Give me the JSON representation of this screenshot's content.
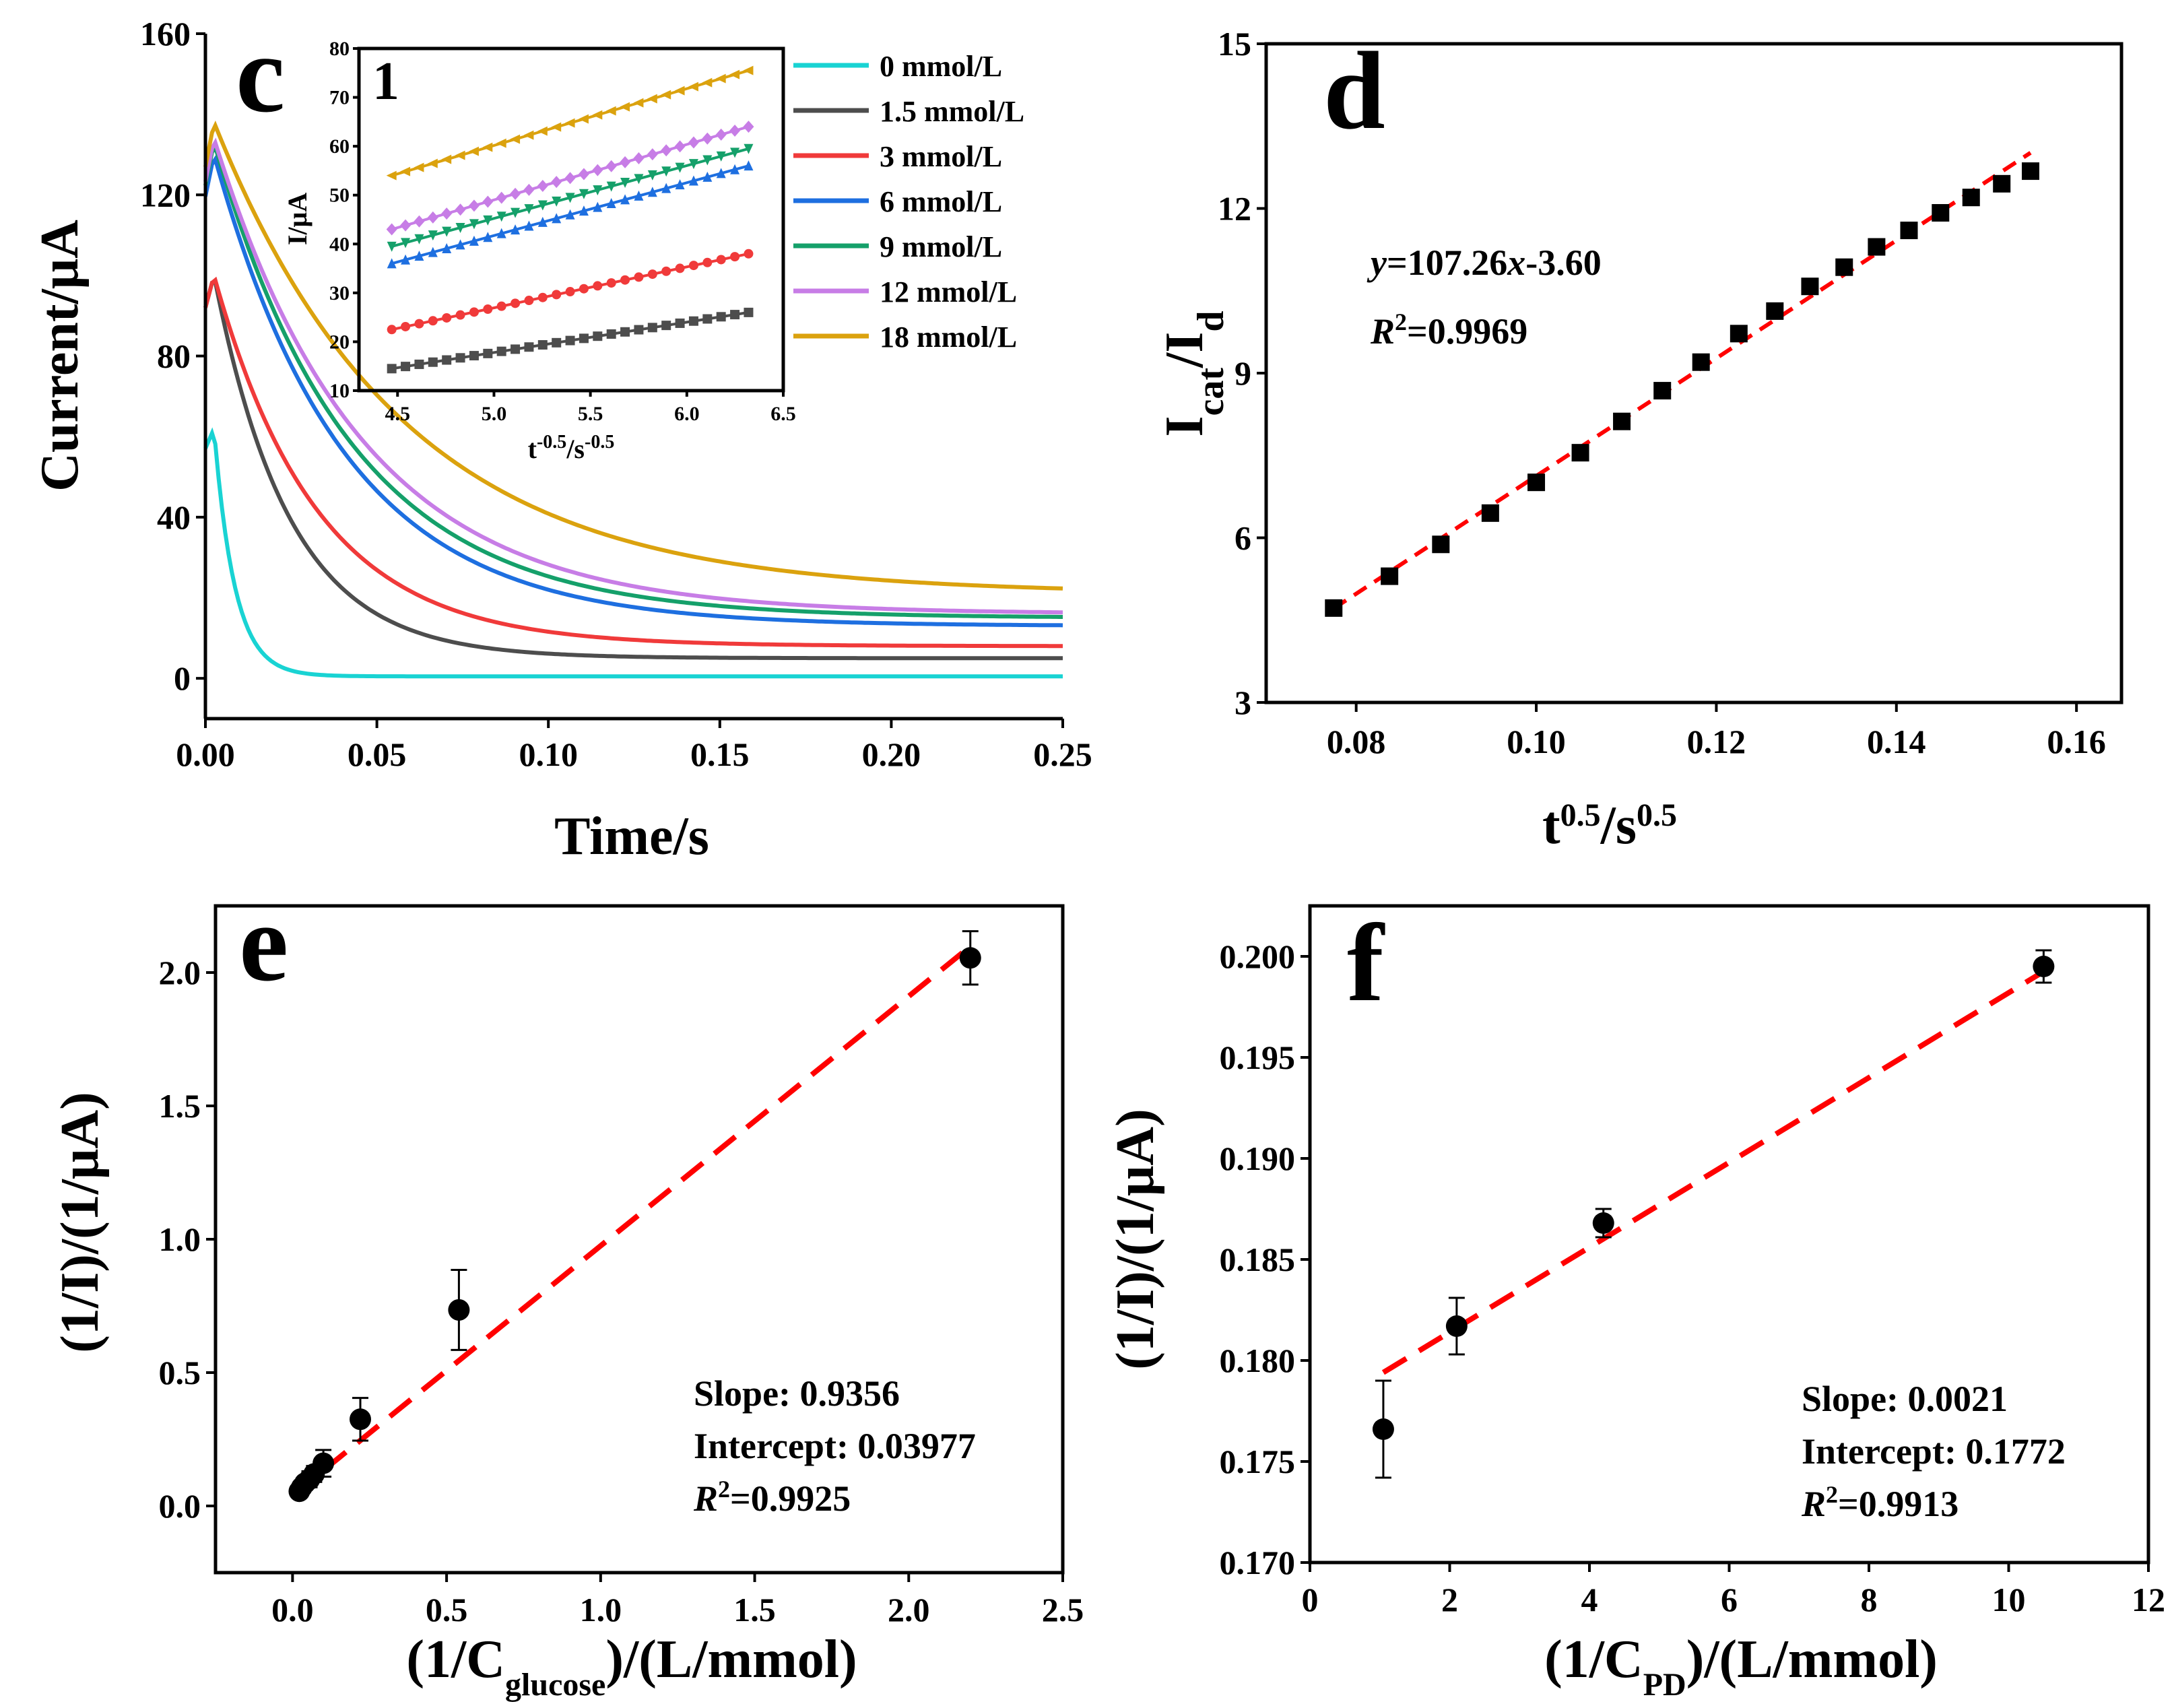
{
  "chart_data": [
    {
      "panel": "c",
      "type": "line",
      "title": "",
      "xlabel": "Time/s",
      "ylabel": "Current/μA",
      "xlim": [
        0,
        0.25
      ],
      "ylim": [
        -10,
        160
      ],
      "xticks": [
        "0.00",
        "0.05",
        "0.10",
        "0.15",
        "0.20",
        "0.25"
      ],
      "yticks": [
        "0",
        "40",
        "80",
        "120",
        "160"
      ],
      "legend_position": "top-right",
      "series": [
        {
          "name": "0 mmol/L",
          "color": "#19D3D3",
          "peak": 62,
          "plateau": 0.5,
          "tau": 0.006
        },
        {
          "name": "1.5 mmol/L",
          "color": "#4D4D4D",
          "peak": 100,
          "plateau": 5,
          "tau": 0.022
        },
        {
          "name": "3 mmol/L",
          "color": "#F03A3A",
          "peak": 100,
          "plateau": 8,
          "tau": 0.03
        },
        {
          "name": "6 mmol/L",
          "color": "#1E6FE0",
          "peak": 130,
          "plateau": 13,
          "tau": 0.038
        },
        {
          "name": "9 mmol/L",
          "color": "#15A06A",
          "peak": 133,
          "plateau": 15,
          "tau": 0.04
        },
        {
          "name": "12 mmol/L",
          "color": "#C77DE6",
          "peak": 134,
          "plateau": 16,
          "tau": 0.043
        },
        {
          "name": "18 mmol/L",
          "color": "#DBA20E",
          "peak": 138,
          "plateau": 21,
          "tau": 0.055
        }
      ],
      "inset": {
        "label": "1",
        "type": "scatter+line",
        "xlabel": "t-0.5/s-0.5",
        "ylabel": "I/μA",
        "xlim": [
          4.3,
          6.5
        ],
        "ylim": [
          10,
          80
        ],
        "xticks": [
          "4.5",
          "5.0",
          "5.5",
          "6.0",
          "6.5"
        ],
        "yticks": [
          "10",
          "20",
          "30",
          "40",
          "50",
          "60",
          "70",
          "80"
        ],
        "x_range": [
          4.47,
          6.32
        ],
        "series": [
          {
            "name": "1.5 mmol/L",
            "y_start": 14.5,
            "y_end": 26,
            "color": "#4D4D4D",
            "marker": "square"
          },
          {
            "name": "3 mmol/L",
            "y_start": 22.5,
            "y_end": 38,
            "color": "#F03A3A",
            "marker": "circle"
          },
          {
            "name": "6 mmol/L",
            "y_start": 36,
            "y_end": 56,
            "color": "#1E6FE0",
            "marker": "triangle-up"
          },
          {
            "name": "9 mmol/L",
            "y_start": 39.5,
            "y_end": 59.5,
            "color": "#15A06A",
            "marker": "triangle-down"
          },
          {
            "name": "12 mmol/L",
            "y_start": 43,
            "y_end": 64,
            "color": "#C77DE6",
            "marker": "diamond"
          },
          {
            "name": "18 mmol/L",
            "y_start": 54,
            "y_end": 75.5,
            "color": "#DBA20E",
            "marker": "triangle-left"
          }
        ]
      }
    },
    {
      "panel": "d",
      "type": "scatter",
      "xlabel": "t0.5/s0.5",
      "ylabel": "Icat/Id",
      "xlim": [
        0.07,
        0.165
      ],
      "ylim": [
        3,
        15
      ],
      "xticks": [
        "0.08",
        "0.10",
        "0.12",
        "0.14",
        "0.16"
      ],
      "yticks": [
        "3",
        "6",
        "9",
        "12",
        "15"
      ],
      "x": [
        0.0775,
        0.0837,
        0.0894,
        0.0949,
        0.1,
        0.1049,
        0.1095,
        0.114,
        0.1183,
        0.1225,
        0.1265,
        0.1304,
        0.1342,
        0.1378,
        0.1414,
        0.1449,
        0.1483,
        0.1517,
        0.1549
      ],
      "y": [
        4.72,
        5.3,
        5.88,
        6.45,
        7.01,
        7.55,
        8.12,
        8.68,
        9.2,
        9.72,
        10.13,
        10.58,
        10.93,
        11.3,
        11.6,
        11.92,
        12.2,
        12.45,
        12.68
      ],
      "fit": {
        "slope": 107.26,
        "intercept": -3.6,
        "x_range": [
          0.0775,
          0.1549
        ],
        "color": "#FF0000",
        "style": "dashed"
      },
      "annotations": {
        "equation": "=107.26-3.60",
        "r2": "=0.9969"
      }
    },
    {
      "panel": "e",
      "type": "scatter",
      "xlabel": "(1/Cglucose)/(L/mmol)",
      "ylabel": "(1/I)/(1/μA)",
      "xlim": [
        -0.25,
        2.5
      ],
      "ylim": [
        -0.25,
        2.25
      ],
      "xticks": [
        "0.0",
        "0.5",
        "1.0",
        "1.5",
        "2.0",
        "2.5"
      ],
      "yticks": [
        "0.0",
        "0.5",
        "1.0",
        "1.5",
        "2.0"
      ],
      "x": [
        0.022,
        0.03,
        0.04,
        0.055,
        0.07,
        0.1,
        0.22,
        0.54,
        2.2
      ],
      "y": [
        0.055,
        0.07,
        0.085,
        0.1,
        0.12,
        0.16,
        0.325,
        0.735,
        2.055
      ],
      "err": [
        0.02,
        0.02,
        0.02,
        0.03,
        0.03,
        0.05,
        0.08,
        0.15,
        0.1
      ],
      "fit": {
        "slope": 0.9356,
        "intercept": 0.03977,
        "x_range": [
          0,
          2.2
        ],
        "color": "#FF0000",
        "style": "dashed"
      },
      "annotations": {
        "slope": "Slope: 0.9356",
        "intercept": "Intercept: 0.03977",
        "r2": "=0.9925"
      }
    },
    {
      "panel": "f",
      "type": "scatter",
      "xlabel": "(1/CPD)/(L/mmol)",
      "ylabel": "(1/I)/(1/μA)",
      "xlim": [
        0,
        12
      ],
      "ylim": [
        0.17,
        0.2025
      ],
      "xticks": [
        "0",
        "2",
        "4",
        "6",
        "8",
        "10",
        "12"
      ],
      "yticks": [
        "0.170",
        "0.175",
        "0.180",
        "0.185",
        "0.190",
        "0.195",
        "0.200"
      ],
      "x": [
        1.05,
        2.1,
        4.2,
        10.5
      ],
      "y": [
        0.1766,
        0.1817,
        0.1868,
        0.1995
      ],
      "err": [
        0.0024,
        0.0014,
        0.0007,
        0.0008
      ],
      "fit": {
        "slope": 0.0021,
        "intercept": 0.1772,
        "x_range": [
          1.05,
          10.5
        ],
        "color": "#FF0000",
        "style": "dashed"
      },
      "annotations": {
        "slope": "Slope: 0.0021",
        "intercept": "Intercept: 0.1772",
        "r2": "=0.9913"
      }
    }
  ],
  "panel_letters": {
    "c": "c",
    "d": "d",
    "e": "e",
    "f": "f"
  },
  "text": {
    "c_xlabel": "Time/s",
    "c_ylabel": "Current/μA",
    "inset_label": "1",
    "inset_ylabel": "I/μA",
    "inset_x_base": "t",
    "inset_x_sup1": "-0.5",
    "inset_x_mid": "/s",
    "inset_x_sup2": "-0.5",
    "d_x_base": "t",
    "d_x_sup1": "0.5",
    "d_x_mid": "/s",
    "d_x_sup2": "0.5",
    "d_y_base1": "I",
    "d_y_sub1": "cat",
    "d_y_mid": "/I",
    "d_y_sub2": "d",
    "d_eq_var1": "y",
    "d_eq_mid": "=107.26",
    "d_eq_var2": "x",
    "d_eq_end": "-3.60",
    "r2_var": "R",
    "r2_sup": "2",
    "d_r2_val": "=0.9969",
    "e_ylabel": "(1/I)/(1/μA)",
    "e_x_pre": "(1/C",
    "e_x_sub": "glucose",
    "e_x_post": ")/(L/mmol)",
    "e_slope": "Slope: 0.9356",
    "e_intercept": "Intercept: 0.03977",
    "e_r2_val": "=0.9925",
    "f_ylabel": "(1/I)/(1/μA)",
    "f_x_pre": "(1/C",
    "f_x_sub": "PD",
    "f_x_post": ")/(L/mmol)",
    "f_slope": "Slope: 0.0021",
    "f_intercept": "Intercept: 0.1772",
    "f_r2_val": "=0.9913"
  }
}
